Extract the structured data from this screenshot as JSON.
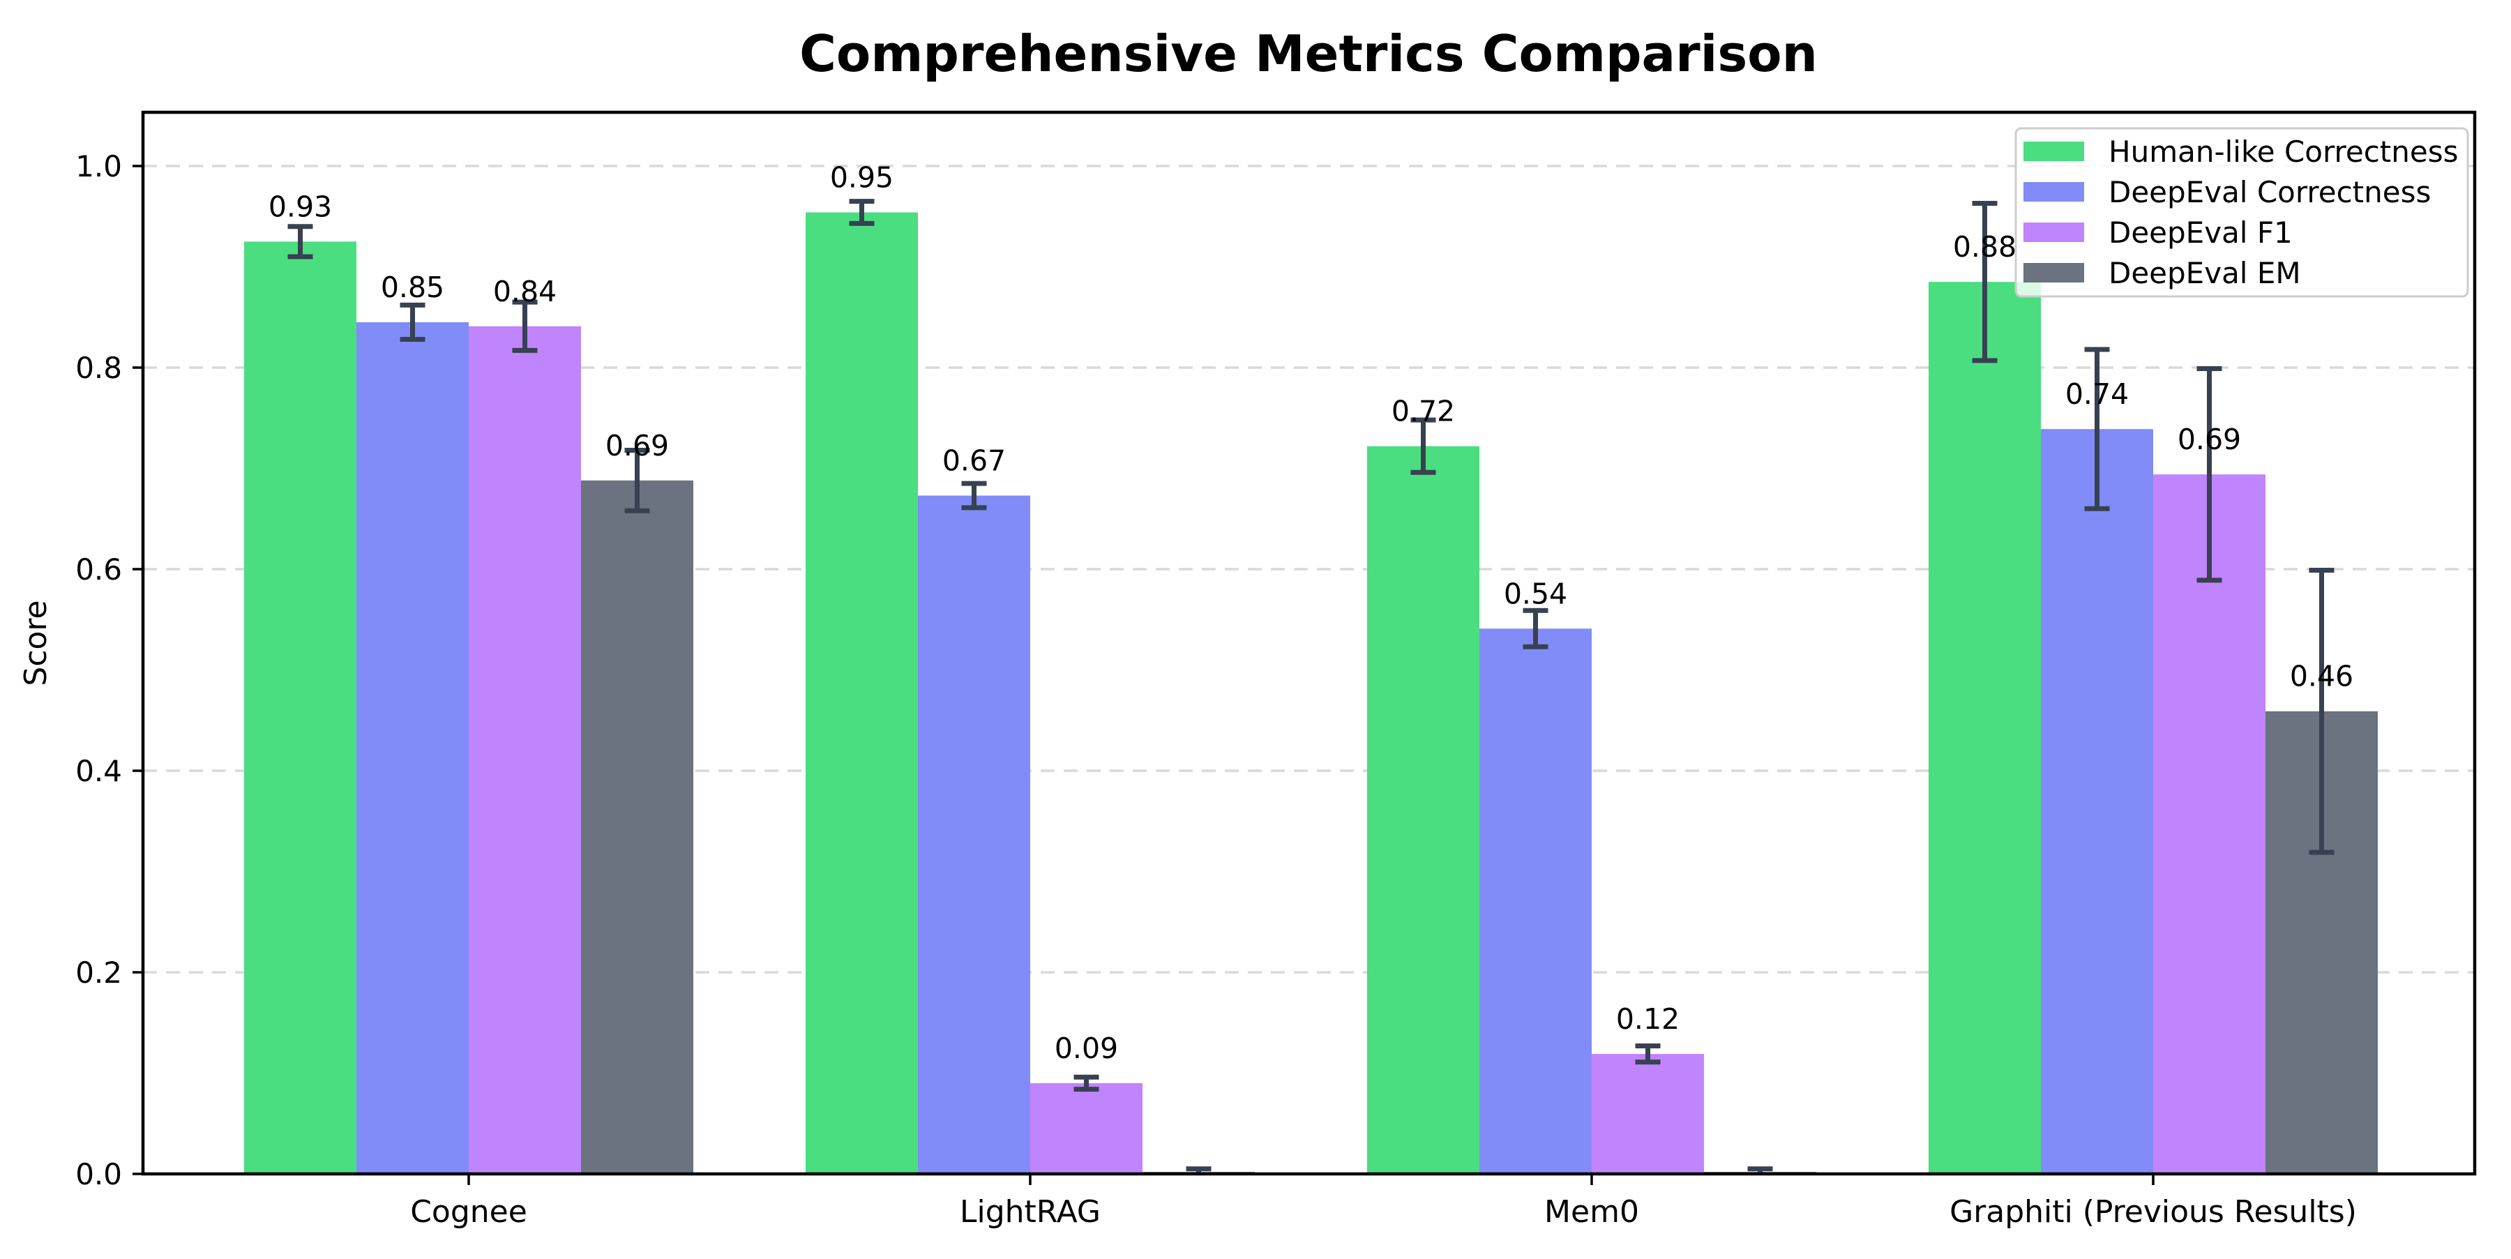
{
  "chart_data": {
    "type": "bar",
    "title": "Comprehensive Metrics Comparison",
    "ylabel": "Score",
    "xlabel": "",
    "categories": [
      "Cognee",
      "LightRAG",
      "Mem0",
      "Graphiti (Previous Results)"
    ],
    "yticks": [
      0.0,
      0.2,
      0.4,
      0.6,
      0.8,
      1.0
    ],
    "ylim": [
      0,
      1.05
    ],
    "grid": "horizontal-dashed",
    "legend_position": "upper-right",
    "background_color": "#ffffff",
    "grid_color": "#d9d9d9",
    "axis_color": "#000000",
    "error_bar_color": "#374151",
    "legend_border_color": "#cccccc",
    "series": [
      {
        "name": "Human-like Correctness",
        "color": "#4ade80",
        "values": [
          0.925,
          0.954,
          0.722,
          0.885
        ],
        "errors": [
          0.015,
          0.011,
          0.026,
          0.078
        ],
        "labels": [
          "0.93",
          "0.95",
          "0.72",
          "0.88"
        ]
      },
      {
        "name": "DeepEval Correctness",
        "color": "#818cf8",
        "values": [
          0.845,
          0.673,
          0.541,
          0.739
        ],
        "errors": [
          0.017,
          0.012,
          0.018,
          0.079
        ],
        "labels": [
          "0.85",
          "0.67",
          "0.54",
          "0.74"
        ]
      },
      {
        "name": "DeepEval F1",
        "color": "#c084fc",
        "values": [
          0.841,
          0.09,
          0.119,
          0.694
        ],
        "errors": [
          0.024,
          0.006,
          0.008,
          0.105
        ],
        "labels": [
          "0.84",
          "0.09",
          "0.12",
          "0.69"
        ]
      },
      {
        "name": "DeepEval EM",
        "color": "#6b7280",
        "values": [
          0.688,
          0.002,
          0.002,
          0.459
        ],
        "errors": [
          0.03,
          0.003,
          0.003,
          0.14
        ],
        "labels": [
          "0.69",
          "",
          "",
          "0.46"
        ]
      }
    ]
  }
}
